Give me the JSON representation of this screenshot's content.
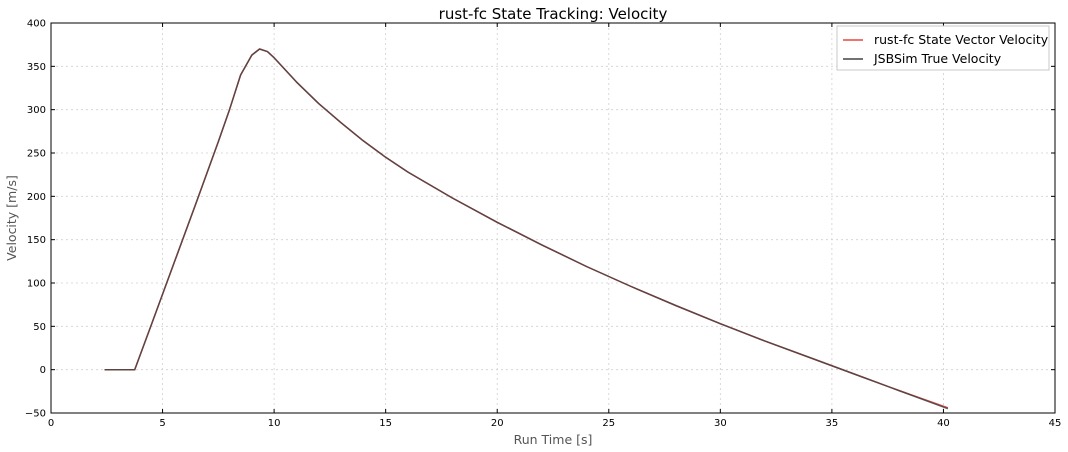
{
  "chart_data": {
    "type": "line",
    "title": "rust-fc State Tracking: Velocity",
    "xlabel": "Run Time [s]",
    "ylabel": "Velocity [m/s]",
    "xlim": [
      0,
      45
    ],
    "ylim": [
      -50,
      400
    ],
    "xticks": [
      0,
      5,
      10,
      15,
      20,
      25,
      30,
      35,
      40,
      45
    ],
    "yticks": [
      -50,
      0,
      50,
      100,
      150,
      200,
      250,
      300,
      350,
      400
    ],
    "xtick_labels": [
      "0",
      "5",
      "10",
      "15",
      "20",
      "25",
      "30",
      "35",
      "40",
      "45"
    ],
    "ytick_labels": [
      "−50",
      "0",
      "50",
      "100",
      "150",
      "200",
      "250",
      "300",
      "350",
      "400"
    ],
    "grid": true,
    "legend_position": "top-right",
    "series": [
      {
        "name": "rust-fc State Vector Velocity",
        "color": "#e8473f",
        "x": [
          2.4,
          3.75,
          4.5,
          5.5,
          6.5,
          7.5,
          8.0,
          8.5,
          9.0,
          9.35,
          9.7,
          10.0,
          11.0,
          12.0,
          13.0,
          14.0,
          15.0,
          16.0,
          17.0,
          18.0,
          20.0,
          22.0,
          24.0,
          26.0,
          28.0,
          30.0,
          32.0,
          34.0,
          36.0,
          38.0,
          40.2
        ],
        "y": [
          0,
          0,
          52,
          122,
          192,
          263,
          300,
          340,
          363,
          370,
          367,
          360,
          332,
          307,
          285,
          264,
          245,
          228,
          213,
          198,
          170,
          144,
          119,
          96,
          74,
          53,
          33,
          14,
          -5,
          -24,
          -44
        ]
      },
      {
        "name": "JSBSim True Velocity",
        "color": "#444444",
        "x": [
          2.4,
          3.75,
          4.5,
          5.5,
          6.5,
          7.5,
          8.0,
          8.5,
          9.0,
          9.35,
          9.7,
          10.0,
          11.0,
          12.0,
          13.0,
          14.0,
          15.0,
          16.0,
          17.0,
          18.0,
          20.0,
          22.0,
          24.0,
          26.0,
          28.0,
          30.0,
          32.0,
          34.0,
          36.0,
          38.0,
          40.2
        ],
        "y": [
          0,
          0,
          52,
          122,
          192,
          263,
          300,
          340,
          363,
          370,
          367,
          360,
          332,
          307,
          285,
          264,
          245,
          228,
          213,
          198,
          170,
          144,
          119,
          96,
          74,
          53,
          33,
          14,
          -5,
          -24,
          -45
        ]
      }
    ]
  }
}
